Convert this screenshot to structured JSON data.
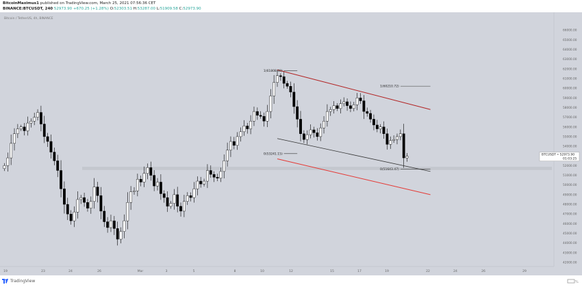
{
  "header": {
    "author": "BitcoinMaximus1",
    "published_text": "published on TradingView.com, March 25, 2021 07:56:36 CET",
    "symbol_line": "BINANCE:BTCUSDT, 240",
    "last": "52973.90",
    "change": "+670.25 (+1.28%)",
    "o_label": "O:",
    "o_value": "52303.51",
    "h_label": "H:",
    "h_value": "53287.00",
    "l_label": "L:",
    "l_value": "51909.58",
    "c_label": "C:",
    "c_value": "52973.90"
  },
  "footer": {
    "brand": "TradingView"
  },
  "colors": {
    "background": "#d1d4dc",
    "up": "#ffffff",
    "down": "#000000",
    "upper_trendline": "#b22222",
    "lower_trendline": "#e53935",
    "mid_trendline": "#333333",
    "support_band": "#c2c5cc"
  },
  "chart_data": {
    "type": "candlestick",
    "symbol": "BTCUSDT",
    "exchange": "BINANCE",
    "timeframe": "240",
    "title": "Bitcoin / TetherUS, 4h, BINANCE",
    "ylim": [
      42000,
      67000
    ],
    "y_ticks": [
      42000,
      43000,
      44000,
      45000,
      46000,
      47000,
      48000,
      49000,
      50000,
      51000,
      52000,
      53000,
      54000,
      55000,
      56000,
      57000,
      58000,
      59000,
      60000,
      61000,
      62000,
      63000,
      64000,
      65000,
      66000
    ],
    "y_tick_labels": [
      "42000.00",
      "43000.00",
      "44000.00",
      "45000.00",
      "46000.00",
      "47000.00",
      "48000.00",
      "49000.00",
      "50000.00",
      "51000.00",
      "52000.00",
      "53000.00",
      "54000.00",
      "55000.00",
      "56000.00",
      "57000.00",
      "58000.00",
      "59000.00",
      "60000.00",
      "61000.00",
      "62000.00",
      "63000.00",
      "64000.00",
      "65000.00",
      "66000.00"
    ],
    "x_ticks": [
      "19",
      "23",
      "24",
      "26",
      "Mar",
      "3",
      "5",
      "8",
      "10",
      "12",
      "15",
      "17",
      "19",
      "22",
      "24",
      "26",
      "29"
    ],
    "closes": [
      52000,
      52800,
      54300,
      55300,
      55800,
      56000,
      55600,
      56400,
      56600,
      57000,
      57500,
      56300,
      55000,
      54500,
      53400,
      52500,
      51500,
      49600,
      48000,
      47000,
      46300,
      47200,
      48500,
      48700,
      48200,
      47600,
      48300,
      49800,
      48900,
      47300,
      46200,
      45600,
      46300,
      45500,
      44400,
      45200,
      46300,
      48200,
      49300,
      49400,
      50600,
      50300,
      51200,
      51800,
      51000,
      49900,
      50300,
      49100,
      48700,
      47800,
      48100,
      49000,
      47800,
      47300,
      48300,
      48900,
      48700,
      49600,
      50400,
      50100,
      50400,
      51500,
      51100,
      50800,
      50700,
      51400,
      52500,
      53600,
      54500,
      54100,
      55000,
      55500,
      56100,
      55800,
      56600,
      57600,
      57200,
      57100,
      56600,
      57600,
      59200,
      60600,
      61300,
      61200,
      60500,
      60200,
      59600,
      58100,
      56800,
      55300,
      54700,
      55200,
      55700,
      55400,
      55000,
      55900,
      56600,
      57600,
      57800,
      58200,
      57900,
      58400,
      58600,
      58200,
      57900,
      58300,
      59000,
      58700,
      57600,
      57400,
      56800,
      56200,
      55800,
      56000,
      55300,
      54200,
      54600,
      54700,
      55000,
      55300,
      52800,
      52970
    ],
    "series": [
      {
        "name": "BTCUSDT",
        "last": 52973.9,
        "countdown": "01:03:25"
      }
    ],
    "annotations": [
      {
        "label": "1(61808.40)",
        "value": 61808.4
      },
      {
        "label": "1(60210.72)",
        "value": 60210.72
      },
      {
        "label": "0(53241.15)",
        "value": 53241.15
      },
      {
        "label": "0(51643.47)",
        "value": 51643.47
      }
    ],
    "trendlines": [
      {
        "name": "upper",
        "from": [
          82,
          61900
        ],
        "to": [
          128,
          57800
        ]
      },
      {
        "name": "middle",
        "from": [
          82,
          54800
        ],
        "to": [
          128,
          51400
        ]
      },
      {
        "name": "lower",
        "from": [
          82,
          52700
        ],
        "to": [
          128,
          49000
        ]
      }
    ],
    "support_zone": [
      51550,
      51880
    ],
    "grid": false,
    "legend": "top-left"
  }
}
